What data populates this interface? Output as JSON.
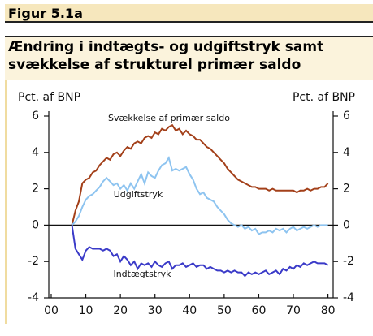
{
  "header": "Figur 5.1a",
  "chart_data": {
    "type": "line",
    "title": "Ændring i indtægts- og udgiftstryk samt svækkelse af strukturel primær saldo",
    "ylabel": "Pct. af BNP",
    "y2label": "Pct. af BNP",
    "x": [
      2006,
      2007,
      2008,
      2009,
      2010,
      2011,
      2012,
      2013,
      2014,
      2015,
      2016,
      2017,
      2018,
      2019,
      2020,
      2021,
      2022,
      2023,
      2024,
      2025,
      2026,
      2027,
      2028,
      2029,
      2030,
      2031,
      2032,
      2033,
      2034,
      2035,
      2036,
      2037,
      2038,
      2039,
      2040,
      2041,
      2042,
      2043,
      2044,
      2045,
      2046,
      2047,
      2048,
      2049,
      2050,
      2051,
      2052,
      2053,
      2054,
      2055,
      2056,
      2057,
      2058,
      2059,
      2060,
      2061,
      2062,
      2063,
      2064,
      2065,
      2066,
      2067,
      2068,
      2069,
      2070,
      2071,
      2072,
      2073,
      2074,
      2075,
      2076,
      2077,
      2078,
      2079,
      2080
    ],
    "series": [
      {
        "name": "Svækkelse af primær saldo",
        "color": "#a3401a",
        "values": [
          0,
          0.8,
          1.3,
          2.3,
          2.5,
          2.6,
          2.9,
          3.0,
          3.3,
          3.5,
          3.7,
          3.6,
          3.9,
          4.0,
          3.8,
          4.1,
          4.3,
          4.2,
          4.5,
          4.6,
          4.5,
          4.8,
          4.9,
          4.8,
          5.1,
          5.0,
          5.3,
          5.2,
          5.4,
          5.5,
          5.2,
          5.3,
          5.0,
          5.2,
          5.0,
          4.9,
          4.7,
          4.7,
          4.5,
          4.3,
          4.2,
          4.0,
          3.8,
          3.6,
          3.4,
          3.1,
          2.9,
          2.7,
          2.5,
          2.4,
          2.3,
          2.2,
          2.1,
          2.1,
          2.0,
          2.0,
          2.0,
          1.9,
          2.0,
          1.9,
          1.9,
          1.9,
          1.9,
          1.9,
          1.9,
          1.8,
          1.9,
          1.9,
          2.0,
          1.9,
          2.0,
          2.0,
          2.1,
          2.1,
          2.3
        ]
      },
      {
        "name": "Udgiftstryk",
        "color": "#8ec4f0",
        "values": [
          0,
          0.2,
          0.5,
          1.0,
          1.4,
          1.6,
          1.7,
          1.9,
          2.1,
          2.4,
          2.6,
          2.4,
          2.2,
          2.3,
          2.0,
          2.2,
          1.9,
          2.3,
          2.0,
          2.4,
          2.8,
          2.3,
          2.9,
          2.7,
          2.6,
          3.0,
          3.3,
          3.4,
          3.7,
          3.0,
          3.1,
          3.0,
          3.1,
          3.2,
          2.8,
          2.5,
          2.0,
          1.7,
          1.8,
          1.5,
          1.4,
          1.3,
          1.0,
          0.8,
          0.6,
          0.3,
          0.1,
          0.0,
          -0.1,
          0.0,
          -0.2,
          -0.1,
          -0.3,
          -0.2,
          -0.5,
          -0.4,
          -0.4,
          -0.3,
          -0.4,
          -0.2,
          -0.3,
          -0.2,
          -0.4,
          -0.2,
          -0.1,
          -0.3,
          -0.2,
          -0.1,
          -0.2,
          -0.1,
          0.0,
          -0.1,
          0.0,
          0.0,
          0.0
        ]
      },
      {
        "name": "Indtægtstryk",
        "color": "#3a3ac8",
        "values": [
          0,
          -1.3,
          -1.6,
          -1.9,
          -1.4,
          -1.2,
          -1.3,
          -1.3,
          -1.3,
          -1.4,
          -1.3,
          -1.4,
          -1.7,
          -1.6,
          -2.0,
          -1.7,
          -1.9,
          -2.2,
          -2.0,
          -2.4,
          -2.1,
          -2.2,
          -2.1,
          -2.3,
          -2.0,
          -2.2,
          -2.3,
          -2.1,
          -2.0,
          -2.4,
          -2.2,
          -2.2,
          -2.1,
          -2.3,
          -2.2,
          -2.1,
          -2.3,
          -2.2,
          -2.2,
          -2.4,
          -2.3,
          -2.4,
          -2.5,
          -2.5,
          -2.6,
          -2.5,
          -2.6,
          -2.5,
          -2.6,
          -2.6,
          -2.8,
          -2.6,
          -2.7,
          -2.6,
          -2.7,
          -2.6,
          -2.5,
          -2.7,
          -2.6,
          -2.5,
          -2.7,
          -2.4,
          -2.5,
          -2.3,
          -2.4,
          -2.2,
          -2.3,
          -2.1,
          -2.2,
          -2.1,
          -2.0,
          -2.1,
          -2.1,
          -2.1,
          -2.2
        ]
      }
    ],
    "xlim": [
      1999.3,
      2081.5
    ],
    "xticks": [
      {
        "value": 2000,
        "label": "00"
      },
      {
        "value": 2010,
        "label": "10"
      },
      {
        "value": 2020,
        "label": "20"
      },
      {
        "value": 2030,
        "label": "30"
      },
      {
        "value": 2040,
        "label": "40"
      },
      {
        "value": 2050,
        "label": "50"
      },
      {
        "value": 2060,
        "label": "60"
      },
      {
        "value": 2070,
        "label": "70"
      },
      {
        "value": 2080,
        "label": "80"
      }
    ],
    "ylim": [
      -4,
      6
    ],
    "yticks": [
      -4,
      -2,
      0,
      2,
      4,
      6
    ],
    "y2lim": [
      -4,
      6
    ],
    "y2ticks": [
      -4,
      -2,
      0,
      2,
      4,
      6
    ],
    "zero_line": true
  }
}
